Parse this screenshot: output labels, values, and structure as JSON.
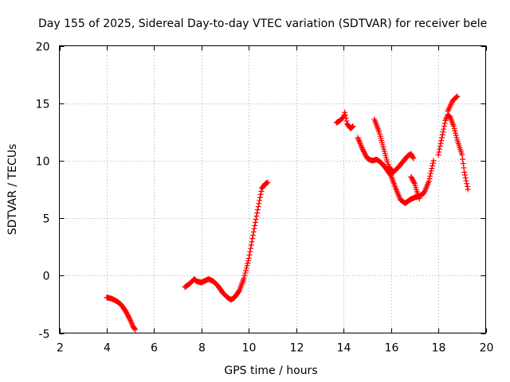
{
  "chart_data": {
    "type": "scatter",
    "title": "Day 155 of 2025, Sidereal Day-to-day VTEC variation (SDTVAR) for receiver bele",
    "xlabel": "GPS time / hours",
    "ylabel": "SDTVAR / TECUs",
    "xlim": [
      2,
      20
    ],
    "ylim": [
      -5,
      20
    ],
    "xticks": [
      2,
      4,
      6,
      8,
      10,
      12,
      14,
      16,
      18,
      20
    ],
    "yticks": [
      -5,
      0,
      5,
      10,
      15,
      20
    ],
    "grid": true,
    "legend": "none",
    "marker": "plus",
    "series": [
      {
        "name": "SDTVAR",
        "color": "#ff0000",
        "segments": [
          [
            [
              4.0,
              -1.9
            ],
            [
              4.2,
              -2.0
            ],
            [
              4.4,
              -2.2
            ],
            [
              4.6,
              -2.5
            ],
            [
              4.8,
              -3.1
            ],
            [
              5.0,
              -3.9
            ],
            [
              5.1,
              -4.4
            ],
            [
              5.2,
              -4.7
            ]
          ],
          [
            [
              7.3,
              -1.0
            ],
            [
              7.5,
              -0.7
            ],
            [
              7.6,
              -0.5
            ],
            [
              7.7,
              -0.3
            ],
            [
              7.8,
              -0.5
            ],
            [
              8.0,
              -0.6
            ],
            [
              8.2,
              -0.4
            ],
            [
              8.3,
              -0.3
            ],
            [
              8.5,
              -0.5
            ],
            [
              8.7,
              -0.9
            ],
            [
              8.9,
              -1.5
            ],
            [
              9.1,
              -1.9
            ],
            [
              9.25,
              -2.1
            ],
            [
              9.4,
              -1.9
            ],
            [
              9.6,
              -1.3
            ],
            [
              9.8,
              -0.2
            ],
            [
              10.0,
              1.5
            ],
            [
              10.2,
              3.8
            ],
            [
              10.4,
              6.0
            ],
            [
              10.55,
              7.6
            ],
            [
              10.7,
              8.0
            ],
            [
              10.8,
              8.1
            ]
          ],
          [
            [
              13.7,
              13.3
            ],
            [
              13.85,
              13.5
            ],
            [
              14.0,
              13.8
            ],
            [
              14.05,
              14.2
            ],
            [
              14.15,
              13.2
            ],
            [
              14.3,
              12.8
            ],
            [
              14.4,
              13.0
            ]
          ],
          [
            [
              14.6,
              12.0
            ],
            [
              14.8,
              11.0
            ],
            [
              15.0,
              10.2
            ],
            [
              15.2,
              10.0
            ],
            [
              15.4,
              10.1
            ],
            [
              15.6,
              9.8
            ],
            [
              15.8,
              9.3
            ],
            [
              16.0,
              8.7
            ],
            [
              16.2,
              7.6
            ],
            [
              16.4,
              6.6
            ],
            [
              16.6,
              6.3
            ],
            [
              16.8,
              6.6
            ],
            [
              17.0,
              6.8
            ],
            [
              17.2,
              6.9
            ],
            [
              17.4,
              7.2
            ],
            [
              17.6,
              8.2
            ],
            [
              17.8,
              10.0
            ]
          ],
          [
            [
              15.3,
              13.6
            ],
            [
              15.5,
              12.5
            ],
            [
              15.7,
              11.0
            ],
            [
              15.9,
              9.5
            ],
            [
              16.1,
              9.0
            ],
            [
              16.3,
              9.4
            ],
            [
              16.5,
              9.9
            ],
            [
              16.7,
              10.4
            ],
            [
              16.85,
              10.6
            ],
            [
              16.95,
              10.2
            ]
          ],
          [
            [
              16.85,
              8.6
            ],
            [
              17.0,
              8.0
            ],
            [
              17.1,
              7.3
            ],
            [
              17.2,
              6.7
            ]
          ],
          [
            [
              18.0,
              10.5
            ],
            [
              18.15,
              12.0
            ],
            [
              18.3,
              13.5
            ],
            [
              18.4,
              14.0
            ],
            [
              18.5,
              13.8
            ],
            [
              18.65,
              13.0
            ],
            [
              18.8,
              11.8
            ],
            [
              19.0,
              10.5
            ],
            [
              19.1,
              9.0
            ],
            [
              19.25,
              7.5
            ]
          ],
          [
            [
              18.4,
              14.3
            ],
            [
              18.6,
              15.2
            ],
            [
              18.8,
              15.6
            ]
          ]
        ]
      }
    ]
  }
}
